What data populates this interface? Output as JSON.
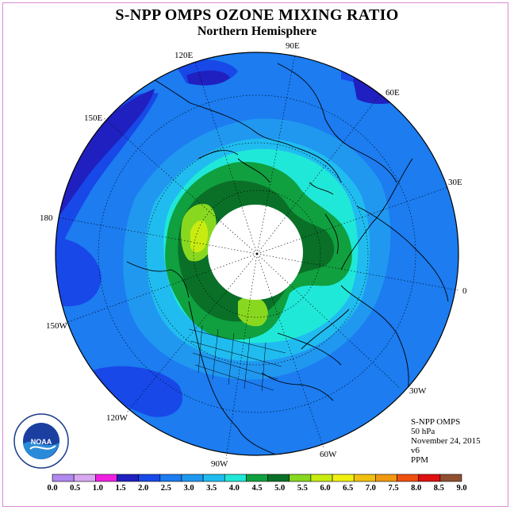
{
  "title": "S-NPP OMPS OZONE MIXING RATIO",
  "subtitle": "Northern Hemisphere",
  "longitude_labels": [
    "90E",
    "60E",
    "30E",
    "0",
    "30W",
    "60W",
    "90W",
    "120W",
    "150W",
    "180",
    "150E",
    "120E"
  ],
  "info": {
    "line1": "S-NPP OMPS",
    "line2": "50 hPa",
    "line3": "November 24, 2015",
    "line4": "v6",
    "line5": "PPM"
  },
  "logo_text": "NOAA",
  "colorbar": {
    "ticks": [
      "0.0",
      "0.5",
      "1.0",
      "1.5",
      "2.0",
      "2.5",
      "3.0",
      "3.5",
      "4.0",
      "4.5",
      "5.0",
      "5.5",
      "6.0",
      "6.5",
      "7.0",
      "7.5",
      "8.0",
      "8.5",
      "9.0"
    ],
    "colors": [
      "#b088ee",
      "#d8a8f0",
      "#f020e0",
      "#2020c0",
      "#1848e8",
      "#1c7cf0",
      "#2098f0",
      "#20bcf0",
      "#20e8d8",
      "#10a040",
      "#0a7028",
      "#88d820",
      "#c8ec10",
      "#f0f010",
      "#f0c010",
      "#f09810",
      "#f05010",
      "#e01010",
      "#905030"
    ]
  },
  "map_colors": {
    "c20": "#1848e8",
    "c25": "#1c7cf0",
    "c15": "#2020c0",
    "c30": "#2098f0",
    "c35": "#20bcf0",
    "c40": "#20e8d8",
    "c45": "#10a040",
    "c50": "#0a7028",
    "c55": "#88d820",
    "c60": "#c8ec10"
  }
}
